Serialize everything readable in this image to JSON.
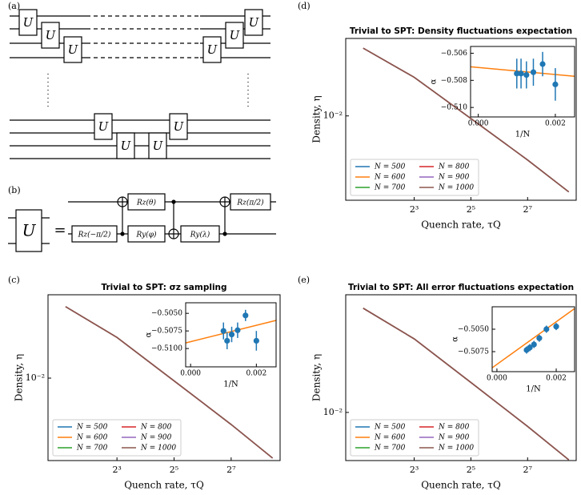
{
  "panels": {
    "a": "(a)",
    "b": "(b)",
    "c": "(c)",
    "d": "(d)",
    "e": "(e)"
  },
  "circuit_a": {
    "gates": [
      "U",
      "U",
      "U",
      "U",
      "U",
      "U",
      "U",
      "U",
      "U",
      "U"
    ]
  },
  "circuit_b": {
    "block": "U",
    "equals": "=",
    "gates": [
      "Rz(−π/2)",
      "Rz(θ)",
      "Ry(φ)",
      "Ry(λ)",
      "Rz(π/2)"
    ]
  },
  "chart_data": [
    {
      "type": "line",
      "title": "Trivial to SPT: σz sampling",
      "xlabel": "Quench rate, τQ",
      "ylabel": "Density, η",
      "xscale": "log",
      "yscale": "log",
      "xlim": [
        1.5,
        420
      ],
      "ylim": [
        0.00214,
        0.0475
      ],
      "xticks": [
        {
          "value": 8,
          "label": "2³"
        },
        {
          "value": 32,
          "label": "2⁵"
        },
        {
          "value": 128,
          "label": "2⁷"
        }
      ],
      "yticks": [
        {
          "value": 0.01,
          "label": "10⁻²"
        }
      ],
      "legend": "lower left",
      "legend_columns": 2,
      "x": [
        2.3,
        8,
        32,
        128,
        350
      ],
      "series": [
        {
          "name": "N = 500",
          "color": "#1f77b4",
          "values": [
            0.038,
            0.0214,
            0.0095,
            0.0042,
            0.00224
          ]
        },
        {
          "name": "N = 600",
          "color": "#ff7f0e",
          "values": [
            0.038,
            0.0214,
            0.0095,
            0.0042,
            0.00224
          ]
        },
        {
          "name": "N = 700",
          "color": "#2ca02c",
          "values": [
            0.038,
            0.0214,
            0.0095,
            0.0042,
            0.00224
          ]
        },
        {
          "name": "N = 800",
          "color": "#d62728",
          "values": [
            0.038,
            0.0214,
            0.0095,
            0.0042,
            0.00224
          ]
        },
        {
          "name": "N = 900",
          "color": "#9467bd",
          "values": [
            0.038,
            0.0214,
            0.0095,
            0.0042,
            0.00224
          ]
        },
        {
          "name": "N = 1000",
          "color": "#8c564b",
          "values": [
            0.038,
            0.0214,
            0.0095,
            0.0042,
            0.00224
          ]
        }
      ]
    },
    {
      "type": "scatter",
      "xlabel": "1/N",
      "ylabel": "α",
      "xlim": [
        -0.00015,
        0.0026
      ],
      "ylim": [
        -0.5126,
        -0.5035
      ],
      "xticks": [
        {
          "value": 0,
          "label": "0.000"
        },
        {
          "value": 0.002,
          "label": "0.002"
        }
      ],
      "yticks": [
        {
          "value": -0.505,
          "label": "−0.5050"
        },
        {
          "value": -0.5075,
          "label": "−0.5075"
        },
        {
          "value": -0.51,
          "label": "−0.5100"
        }
      ],
      "color": "#1f77b4",
      "x": [
        0.001,
        0.00111,
        0.00125,
        0.00143,
        0.00167,
        0.002
      ],
      "values": [
        -0.5075,
        -0.5089,
        -0.508,
        -0.5074,
        -0.5053,
        -0.5089
      ],
      "errors": [
        0.0012,
        0.0012,
        0.0011,
        0.0011,
        0.0008,
        0.0014
      ],
      "fit": {
        "color": "#ff7f0e",
        "x": [
          -0.00015,
          0.0026
        ],
        "values": [
          -0.5092,
          -0.506
        ]
      }
    },
    {
      "type": "line",
      "title": "Trivial to SPT: Density fluctuations expectation",
      "xlabel": "Quench rate, τQ",
      "ylabel": "Density, η",
      "xscale": "log",
      "yscale": "log",
      "xlim": [
        1.5,
        420
      ],
      "ylim": [
        0.0019,
        0.046
      ],
      "xticks": [
        {
          "value": 8,
          "label": "2³"
        },
        {
          "value": 32,
          "label": "2⁵"
        },
        {
          "value": 128,
          "label": "2⁷"
        }
      ],
      "yticks": [
        {
          "value": 0.01,
          "label": "10⁻²"
        }
      ],
      "legend": "lower left",
      "legend_columns": 2,
      "x": [
        2.3,
        8,
        32,
        128,
        350
      ],
      "series": [
        {
          "name": "N = 500",
          "color": "#1f77b4",
          "values": [
            0.038,
            0.0214,
            0.0095,
            0.0042,
            0.00224
          ]
        },
        {
          "name": "N = 600",
          "color": "#ff7f0e",
          "values": [
            0.038,
            0.0214,
            0.0095,
            0.0042,
            0.00224
          ]
        },
        {
          "name": "N = 700",
          "color": "#2ca02c",
          "values": [
            0.038,
            0.0214,
            0.0095,
            0.0042,
            0.00224
          ]
        },
        {
          "name": "N = 800",
          "color": "#d62728",
          "values": [
            0.038,
            0.0214,
            0.0095,
            0.0042,
            0.00224
          ]
        },
        {
          "name": "N = 900",
          "color": "#9467bd",
          "values": [
            0.038,
            0.0214,
            0.0095,
            0.0042,
            0.00224
          ]
        },
        {
          "name": "N = 1000",
          "color": "#8c564b",
          "values": [
            0.038,
            0.0214,
            0.0095,
            0.0042,
            0.00224
          ]
        }
      ]
    },
    {
      "type": "scatter",
      "xlabel": "1/N",
      "ylabel": "α",
      "xlim": [
        -0.0002,
        0.0025
      ],
      "ylim": [
        -0.5107,
        -0.5055
      ],
      "xticks": [
        {
          "value": 0,
          "label": "0.000"
        },
        {
          "value": 0.002,
          "label": "0.002"
        }
      ],
      "yticks": [
        {
          "value": -0.506,
          "label": "−0.506"
        },
        {
          "value": -0.508,
          "label": "−0.508"
        },
        {
          "value": -0.51,
          "label": "−0.510"
        }
      ],
      "color": "#1f77b4",
      "x": [
        0.001,
        0.00111,
        0.00125,
        0.00143,
        0.00167,
        0.002
      ],
      "values": [
        -0.5075,
        -0.5075,
        -0.5076,
        -0.5074,
        -0.5068,
        -0.5083
      ],
      "errors": [
        0.0011,
        0.0011,
        0.001,
        0.001,
        0.0009,
        0.0012
      ],
      "fit": {
        "color": "#ff7f0e",
        "x": [
          -0.0002,
          0.0025
        ],
        "values": [
          -0.507,
          -0.5077
        ]
      }
    },
    {
      "type": "line",
      "title": "Trivial to SPT: All error fluctuations expectation",
      "xlabel": "Quench rate, τQ",
      "ylabel": "Density, η",
      "xscale": "log",
      "yscale": "log",
      "xlim": [
        1.5,
        420
      ],
      "ylim": [
        0.00407,
        0.09
      ],
      "xticks": [
        {
          "value": 8,
          "label": "2³"
        },
        {
          "value": 32,
          "label": "2⁵"
        },
        {
          "value": 128,
          "label": "2⁷"
        }
      ],
      "yticks": [
        {
          "value": 0.01,
          "label": "10⁻²"
        }
      ],
      "legend": "lower left",
      "legend_columns": 2,
      "x": [
        2.3,
        8,
        32,
        128,
        350
      ],
      "series": [
        {
          "name": "N = 500",
          "color": "#1f77b4",
          "values": [
            0.07,
            0.0395,
            0.0175,
            0.0077,
            0.00413
          ]
        },
        {
          "name": "N = 600",
          "color": "#ff7f0e",
          "values": [
            0.07,
            0.0395,
            0.0175,
            0.0077,
            0.00413
          ]
        },
        {
          "name": "N = 700",
          "color": "#2ca02c",
          "values": [
            0.07,
            0.0395,
            0.0175,
            0.0077,
            0.00413
          ]
        },
        {
          "name": "N = 800",
          "color": "#d62728",
          "values": [
            0.07,
            0.0395,
            0.0175,
            0.0077,
            0.00413
          ]
        },
        {
          "name": "N = 900",
          "color": "#9467bd",
          "values": [
            0.07,
            0.0395,
            0.0175,
            0.0077,
            0.00413
          ]
        },
        {
          "name": "N = 1000",
          "color": "#8c564b",
          "values": [
            0.07,
            0.0395,
            0.0175,
            0.0077,
            0.00413
          ]
        }
      ]
    },
    {
      "type": "scatter",
      "xlabel": "1/N",
      "ylabel": "α",
      "xlim": [
        -0.00016,
        0.00262
      ],
      "ylim": [
        -0.50973,
        -0.5025
      ],
      "xticks": [
        {
          "value": 0,
          "label": "0.000"
        },
        {
          "value": 0.002,
          "label": "0.002"
        }
      ],
      "yticks": [
        {
          "value": -0.505,
          "label": "−0.5050"
        },
        {
          "value": -0.5075,
          "label": "−0.5075"
        }
      ],
      "color": "#1f77b4",
      "x": [
        0.001,
        0.00111,
        0.00125,
        0.00143,
        0.00167,
        0.002
      ],
      "values": [
        -0.50732,
        -0.50705,
        -0.5067,
        -0.506,
        -0.505,
        -0.5047
      ],
      "errors": [
        0.0004,
        0.0004,
        0.0004,
        0.0004,
        0.0004,
        0.0004
      ],
      "fit": {
        "color": "#ff7f0e",
        "x": [
          -0.00016,
          0.00262
        ],
        "values": [
          -0.5093,
          -0.5027
        ]
      }
    }
  ]
}
